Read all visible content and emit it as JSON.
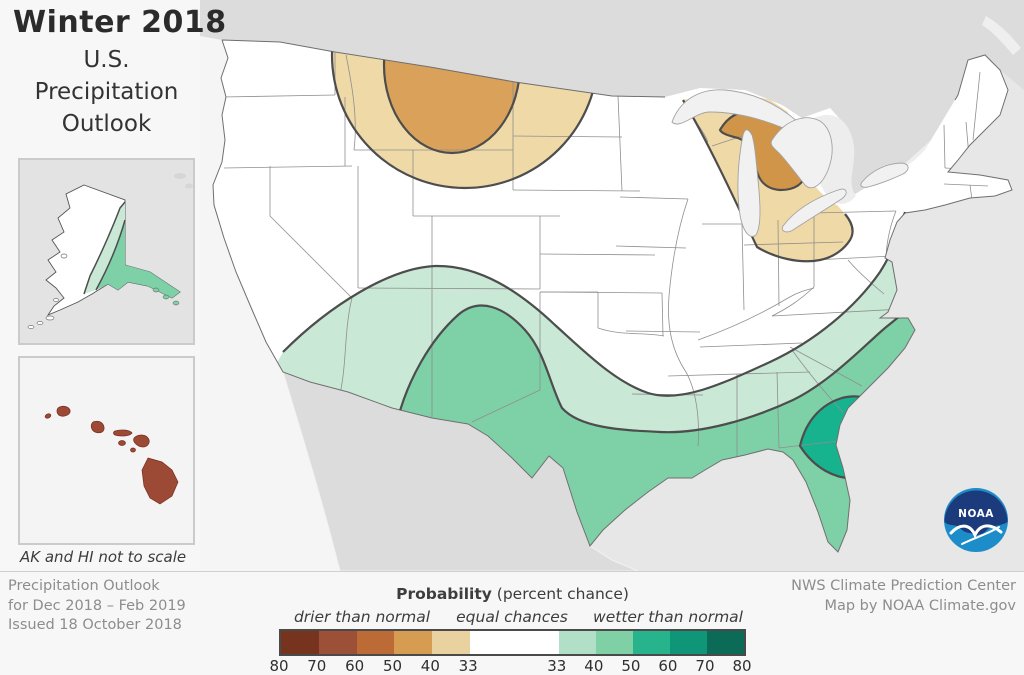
{
  "title": {
    "season": "Winter 2018",
    "line1": "U.S.",
    "line2": "Precipitation",
    "line3": "Outlook"
  },
  "insets": {
    "note": "AK and HI not to scale"
  },
  "footer": {
    "left": [
      "Precipitation Outlook",
      "for Dec 2018 – Feb 2019",
      "Issued 18 October 2018"
    ],
    "right": [
      "NWS Climate Prediction Center",
      "Map by NOAA Climate.gov"
    ]
  },
  "legend": {
    "title_bold": "Probability",
    "title_rest": " (percent chance)",
    "drier_label": "drier than normal",
    "equal_label": "equal chances",
    "wetter_label": "wetter than normal",
    "segments": [
      {
        "color": "#76341e",
        "width_pct": 8.17
      },
      {
        "color": "#9d5038",
        "width_pct": 8.17
      },
      {
        "color": "#bc6b36",
        "width_pct": 8.18
      },
      {
        "color": "#d69c52",
        "width_pct": 8.17
      },
      {
        "color": "#ead1a0",
        "width_pct": 8.17
      },
      {
        "color": "#ffffff",
        "width_pct": 19.14
      },
      {
        "color": "#b2dfc7",
        "width_pct": 8.0
      },
      {
        "color": "#7fd0a5",
        "width_pct": 8.0
      },
      {
        "color": "#27b38b",
        "width_pct": 8.0
      },
      {
        "color": "#0f9679",
        "width_pct": 8.0
      },
      {
        "color": "#0c6b57",
        "width_pct": 8.0
      }
    ],
    "ticks": [
      {
        "label": "80",
        "pos_pct": 0
      },
      {
        "label": "70",
        "pos_pct": 8.17
      },
      {
        "label": "60",
        "pos_pct": 16.34
      },
      {
        "label": "50",
        "pos_pct": 24.52
      },
      {
        "label": "40",
        "pos_pct": 32.69
      },
      {
        "label": "33",
        "pos_pct": 40.86
      },
      {
        "label": "33",
        "pos_pct": 60.0
      },
      {
        "label": "40",
        "pos_pct": 68.0
      },
      {
        "label": "50",
        "pos_pct": 76.0
      },
      {
        "label": "60",
        "pos_pct": 84.0
      },
      {
        "label": "70",
        "pos_pct": 92.0
      },
      {
        "label": "80",
        "pos_pct": 100.0
      }
    ]
  },
  "logo": {
    "text": "NOAA"
  },
  "map": {
    "region_fills": {
      "ocean": "#e7e7e7",
      "pacific": "#f5f5f5",
      "canada": "#dcdcdc",
      "mexico": "#dcdcdc",
      "ontario_peninsula": "#ededed",
      "us_land": "#ffffff",
      "lakes": "#f1f1f1",
      "dry_33_40": "#efd9a7",
      "dry_40_50": "#d9a159",
      "dry_40_50_michigan": "#d09549",
      "wet_33_40": "#c9e8d6",
      "wet_40_50": "#7ed0a7",
      "wet_50_60": "#17b28e",
      "hawaii_dry": "#9c4a36",
      "boundary": "#4d4d4d",
      "noaa_navy": "#1b3b7c",
      "noaa_blue": "#1c8dc9"
    },
    "outlook_regions": [
      {
        "area": "Northern Rockies / Northern Plains core",
        "category": "drier than normal",
        "probability": "40-50%"
      },
      {
        "area": "Northern Rockies / Northern Plains outer band",
        "category": "drier than normal",
        "probability": "33-40%"
      },
      {
        "area": "Michigan / Upper Great Lakes core",
        "category": "drier than normal",
        "probability": "40-50%"
      },
      {
        "area": "Great Lakes outer band",
        "category": "drier than normal",
        "probability": "33-40%"
      },
      {
        "area": "Southwest through Gulf Coast, Southeast and Mid-Atlantic outer band",
        "category": "wetter than normal",
        "probability": "33-40%"
      },
      {
        "area": "New Mexico, Texas, Gulf Coast states, Carolinas",
        "category": "wetter than normal",
        "probability": "40-50%"
      },
      {
        "area": "Southern Georgia / Northern Florida",
        "category": "wetter than normal",
        "probability": "50-60%"
      },
      {
        "area": "Southern Alaska coast",
        "category": "wetter than normal",
        "probability": "33-50%"
      },
      {
        "area": "Hawaii",
        "category": "drier than normal",
        "probability": "60-70%"
      }
    ]
  }
}
